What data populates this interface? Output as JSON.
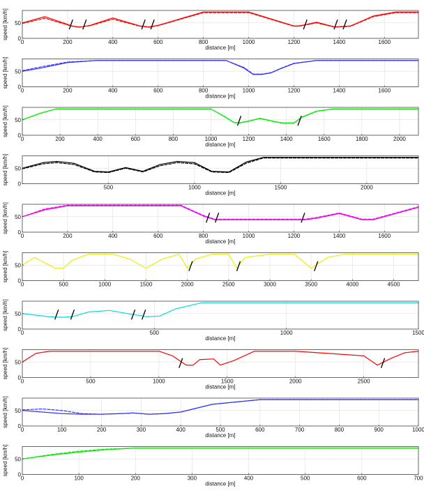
{
  "figure": {
    "title": "",
    "type": "line",
    "panels_count": 10
  },
  "chart_data": [
    {
      "type": "line",
      "title": "",
      "xlabel": "distance [m]",
      "ylabel": "speed [km/h]",
      "xlim": [
        0,
        1750
      ],
      "ylim": [
        0,
        90
      ],
      "xticks": [
        0,
        200,
        400,
        600,
        800,
        1000,
        1200,
        1400,
        1600
      ],
      "yticks": [
        0,
        50
      ],
      "color": "#ff0000",
      "grid": true,
      "series": [
        {
          "style": "solid",
          "x": [
            0,
            100,
            220,
            250,
            260,
            300,
            400,
            520,
            560,
            600,
            800,
            1000,
            1200,
            1220,
            1250,
            1300,
            1380,
            1450,
            1550,
            1650,
            1750
          ],
          "y": [
            50,
            70,
            40,
            37,
            37,
            42,
            66,
            40,
            37,
            42,
            85,
            85,
            40,
            40,
            44,
            52,
            37,
            40,
            72,
            85,
            85
          ]
        },
        {
          "style": "dashed",
          "x": [
            0,
            100,
            220,
            250,
            260,
            300,
            400,
            520,
            560,
            600,
            800,
            1000,
            1200,
            1220,
            1250,
            1300,
            1380,
            1450,
            1550,
            1650,
            1750
          ],
          "y": [
            48,
            65,
            39,
            36,
            37,
            41,
            62,
            39,
            36,
            41,
            83,
            83,
            39,
            39,
            43,
            50,
            36,
            39,
            70,
            83,
            83
          ]
        }
      ],
      "markers": [
        {
          "x": 215,
          "y": 38
        },
        {
          "x": 275,
          "y": 38
        },
        {
          "x": 535,
          "y": 38
        },
        {
          "x": 575,
          "y": 38
        },
        {
          "x": 1250,
          "y": 38
        },
        {
          "x": 1385,
          "y": 38
        },
        {
          "x": 1425,
          "y": 38
        }
      ]
    },
    {
      "type": "line",
      "title": "",
      "xlabel": "distance [m]",
      "ylabel": "speed [km/h]",
      "xlim": [
        0,
        1750
      ],
      "ylim": [
        0,
        90
      ],
      "xticks": [
        0,
        200,
        400,
        600,
        800,
        1000,
        1200,
        1400,
        1600
      ],
      "yticks": [
        0,
        50
      ],
      "color": "#3333ff",
      "grid": true,
      "series": [
        {
          "style": "solid",
          "x": [
            0,
            80,
            200,
            330,
            500,
            700,
            900,
            980,
            1020,
            1060,
            1100,
            1140,
            1200,
            1300,
            1450,
            1750
          ],
          "y": [
            50,
            60,
            78,
            85,
            85,
            85,
            85,
            60,
            40,
            40,
            45,
            58,
            75,
            85,
            85,
            85
          ]
        },
        {
          "style": "dashed",
          "x": [
            0,
            80,
            200,
            330,
            500,
            700,
            900,
            980,
            1020,
            1060,
            1100,
            1140,
            1200,
            1300,
            1450,
            1750
          ],
          "y": [
            52,
            64,
            80,
            85,
            85,
            85,
            85,
            62,
            41,
            41,
            46,
            59,
            76,
            85,
            85,
            85
          ]
        }
      ],
      "markers": []
    },
    {
      "type": "line",
      "title": "",
      "xlabel": "distance [m]",
      "ylabel": "speed [km/h]",
      "xlim": [
        0,
        2100
      ],
      "ylim": [
        0,
        90
      ],
      "xticks": [
        0,
        200,
        400,
        600,
        800,
        1000,
        1200,
        1400,
        1600,
        1800,
        2000
      ],
      "yticks": [
        0,
        50
      ],
      "color": "#00ee00",
      "grid": true,
      "series": [
        {
          "style": "solid",
          "x": [
            0,
            100,
            180,
            300,
            600,
            1000,
            1080,
            1120,
            1150,
            1200,
            1260,
            1340,
            1380,
            1440,
            1480,
            1560,
            1650,
            2100
          ],
          "y": [
            50,
            72,
            85,
            85,
            85,
            85,
            58,
            42,
            40,
            46,
            55,
            44,
            40,
            40,
            58,
            78,
            85,
            85
          ]
        },
        {
          "style": "dashed",
          "x": [
            0,
            100,
            180,
            300,
            600,
            1000,
            1080,
            1120,
            1150,
            1200,
            1260,
            1340,
            1380,
            1440,
            1480,
            1560,
            1650,
            2100
          ],
          "y": [
            50,
            72,
            85,
            85,
            85,
            85,
            57,
            41,
            39,
            45,
            54,
            43,
            39,
            39,
            57,
            77,
            85,
            85
          ]
        }
      ],
      "markers": [
        {
          "x": 1150,
          "y": 40
        },
        {
          "x": 1470,
          "y": 40
        }
      ]
    },
    {
      "type": "line",
      "title": "",
      "xlabel": "distance [m]",
      "ylabel": "speed [km/h]",
      "xlim": [
        0,
        2300
      ],
      "ylim": [
        0,
        90
      ],
      "xticks": [
        500,
        1000,
        1500,
        2000
      ],
      "yticks": [
        0,
        50
      ],
      "color": "#000000",
      "grid": true,
      "series": [
        {
          "style": "solid",
          "x": [
            0,
            120,
            200,
            300,
            420,
            500,
            600,
            700,
            800,
            900,
            1000,
            1100,
            1200,
            1300,
            1400,
            1600,
            2300
          ],
          "y": [
            50,
            68,
            72,
            66,
            40,
            38,
            52,
            40,
            62,
            72,
            68,
            40,
            38,
            70,
            85,
            85,
            85
          ]
        },
        {
          "style": "dashed",
          "x": [
            0,
            120,
            200,
            300,
            420,
            500,
            600,
            700,
            800,
            900,
            1000,
            1100,
            1200,
            1300,
            1400,
            1600,
            2300
          ],
          "y": [
            48,
            64,
            68,
            62,
            38,
            36,
            50,
            38,
            58,
            68,
            64,
            38,
            36,
            66,
            83,
            83,
            83
          ]
        }
      ],
      "markers": []
    },
    {
      "type": "line",
      "title": "",
      "xlabel": "distance [m]",
      "ylabel": "speed [km/h]",
      "xlim": [
        0,
        1750
      ],
      "ylim": [
        0,
        90
      ],
      "xticks": [
        0,
        200,
        400,
        600,
        800,
        1000,
        1200,
        1400,
        1600
      ],
      "yticks": [
        0,
        50
      ],
      "color": "#ee00ee",
      "grid": true,
      "series": [
        {
          "style": "solid",
          "x": [
            0,
            100,
            200,
            400,
            700,
            800,
            850,
            900,
            1050,
            1150,
            1200,
            1250,
            1300,
            1400,
            1500,
            1550,
            1650,
            1750
          ],
          "y": [
            50,
            72,
            85,
            85,
            85,
            52,
            40,
            40,
            40,
            40,
            40,
            40,
            45,
            60,
            40,
            40,
            60,
            80
          ]
        },
        {
          "style": "dashed",
          "x": [
            0,
            100,
            200,
            400,
            700,
            800,
            850,
            900,
            1050,
            1150,
            1200,
            1250,
            1300,
            1400,
            1500,
            1550,
            1650,
            1750
          ],
          "y": [
            50,
            75,
            87,
            87,
            87,
            54,
            42,
            42,
            42,
            42,
            42,
            42,
            47,
            62,
            42,
            42,
            62,
            82
          ]
        }
      ],
      "markers": [
        {
          "x": 820,
          "y": 40
        },
        {
          "x": 860,
          "y": 40
        },
        {
          "x": 1240,
          "y": 40
        }
      ]
    },
    {
      "type": "line",
      "title": "",
      "xlabel": "",
      "ylabel": "speed [km/h]",
      "xlim": [
        0,
        4800
      ],
      "ylim": [
        0,
        90
      ],
      "xticks": [
        0,
        500,
        1000,
        1500,
        2000,
        2500,
        3000,
        3500,
        4000,
        4500
      ],
      "yticks": [
        0,
        50
      ],
      "color": "#eeee00",
      "grid": true,
      "series": [
        {
          "style": "solid",
          "x": [
            0,
            150,
            400,
            500,
            600,
            800,
            1100,
            1300,
            1500,
            1700,
            1900,
            2000,
            2100,
            2300,
            2500,
            2600,
            2700,
            3000,
            3300,
            3500,
            3700,
            3900,
            4800
          ],
          "y": [
            50,
            75,
            40,
            40,
            65,
            85,
            85,
            70,
            40,
            70,
            85,
            40,
            70,
            85,
            85,
            40,
            75,
            85,
            85,
            40,
            75,
            85,
            85
          ]
        }
      ],
      "markers": [
        {
          "x": 2040,
          "y": 40
        },
        {
          "x": 2620,
          "y": 40
        },
        {
          "x": 3560,
          "y": 40
        }
      ]
    },
    {
      "type": "line",
      "title": "",
      "xlabel": "distance [m]",
      "ylabel": "speed [km/h]",
      "xlim": [
        0,
        1500
      ],
      "ylim": [
        0,
        90
      ],
      "xticks": [
        0,
        500,
        1000,
        1500
      ],
      "yticks": [
        0,
        50
      ],
      "color": "#00dddd",
      "grid": true,
      "series": [
        {
          "style": "solid",
          "x": [
            0,
            100,
            150,
            190,
            250,
            330,
            400,
            470,
            520,
            580,
            680,
            900,
            1500
          ],
          "y": [
            50,
            40,
            38,
            40,
            55,
            60,
            50,
            40,
            42,
            65,
            85,
            85,
            85
          ]
        }
      ],
      "markers": [
        {
          "x": 130,
          "y": 40
        },
        {
          "x": 190,
          "y": 40
        },
        {
          "x": 420,
          "y": 40
        },
        {
          "x": 460,
          "y": 40
        }
      ]
    },
    {
      "type": "line",
      "title": "",
      "xlabel": "distance [m]",
      "ylabel": "speed [km/h]",
      "xlim": [
        0,
        2900
      ],
      "ylim": [
        0,
        90
      ],
      "xticks": [
        0,
        500,
        1000,
        1500,
        2000,
        2500
      ],
      "yticks": [
        0,
        50
      ],
      "color": "#ff0000",
      "grid": true,
      "series": [
        {
          "style": "solid",
          "x": [
            0,
            100,
            200,
            500,
            1000,
            1100,
            1200,
            1250,
            1300,
            1400,
            1450,
            1550,
            1700,
            2000,
            2500,
            2600,
            2700,
            2800,
            2900
          ],
          "y": [
            50,
            78,
            85,
            85,
            85,
            70,
            40,
            40,
            58,
            60,
            40,
            55,
            85,
            85,
            70,
            40,
            62,
            80,
            85
          ]
        }
      ],
      "markers": [
        {
          "x": 1160,
          "y": 40
        },
        {
          "x": 2640,
          "y": 40
        }
      ]
    },
    {
      "type": "line",
      "title": "",
      "xlabel": "distance [m]",
      "ylabel": "speed [km/h]",
      "xlim": [
        0,
        1000
      ],
      "ylim": [
        0,
        90
      ],
      "xticks": [
        0,
        100,
        200,
        300,
        400,
        500,
        600,
        700,
        800,
        900,
        1000
      ],
      "yticks": [
        0,
        50
      ],
      "color": "#3333ff",
      "grid": true,
      "series": [
        {
          "style": "solid",
          "x": [
            0,
            50,
            100,
            150,
            200,
            250,
            280,
            320,
            360,
            400,
            480,
            600,
            1000
          ],
          "y": [
            50,
            45,
            40,
            38,
            38,
            40,
            42,
            38,
            40,
            45,
            70,
            85,
            85
          ]
        },
        {
          "style": "dashed",
          "x": [
            0,
            50,
            100,
            150,
            200,
            250,
            280,
            320,
            360,
            400,
            480,
            600,
            1000
          ],
          "y": [
            52,
            55,
            50,
            40,
            38,
            40,
            42,
            38,
            40,
            45,
            70,
            85,
            85
          ]
        }
      ],
      "markers": []
    },
    {
      "type": "line",
      "title": "",
      "xlabel": "distance [m]",
      "ylabel": "speed [km/h]",
      "xlim": [
        0,
        700
      ],
      "ylim": [
        0,
        90
      ],
      "xticks": [
        0,
        100,
        200,
        300,
        400,
        500,
        600,
        700
      ],
      "yticks": [
        0,
        50
      ],
      "color": "#00ee00",
      "grid": true,
      "series": [
        {
          "style": "solid",
          "x": [
            0,
            50,
            100,
            150,
            200,
            300,
            400,
            700
          ],
          "y": [
            50,
            62,
            72,
            80,
            85,
            85,
            85,
            85
          ]
        },
        {
          "style": "dashed",
          "x": [
            0,
            50,
            100,
            150,
            200,
            300,
            400,
            700
          ],
          "y": [
            50,
            64,
            75,
            82,
            85,
            85,
            85,
            85
          ]
        }
      ],
      "markers": []
    }
  ]
}
